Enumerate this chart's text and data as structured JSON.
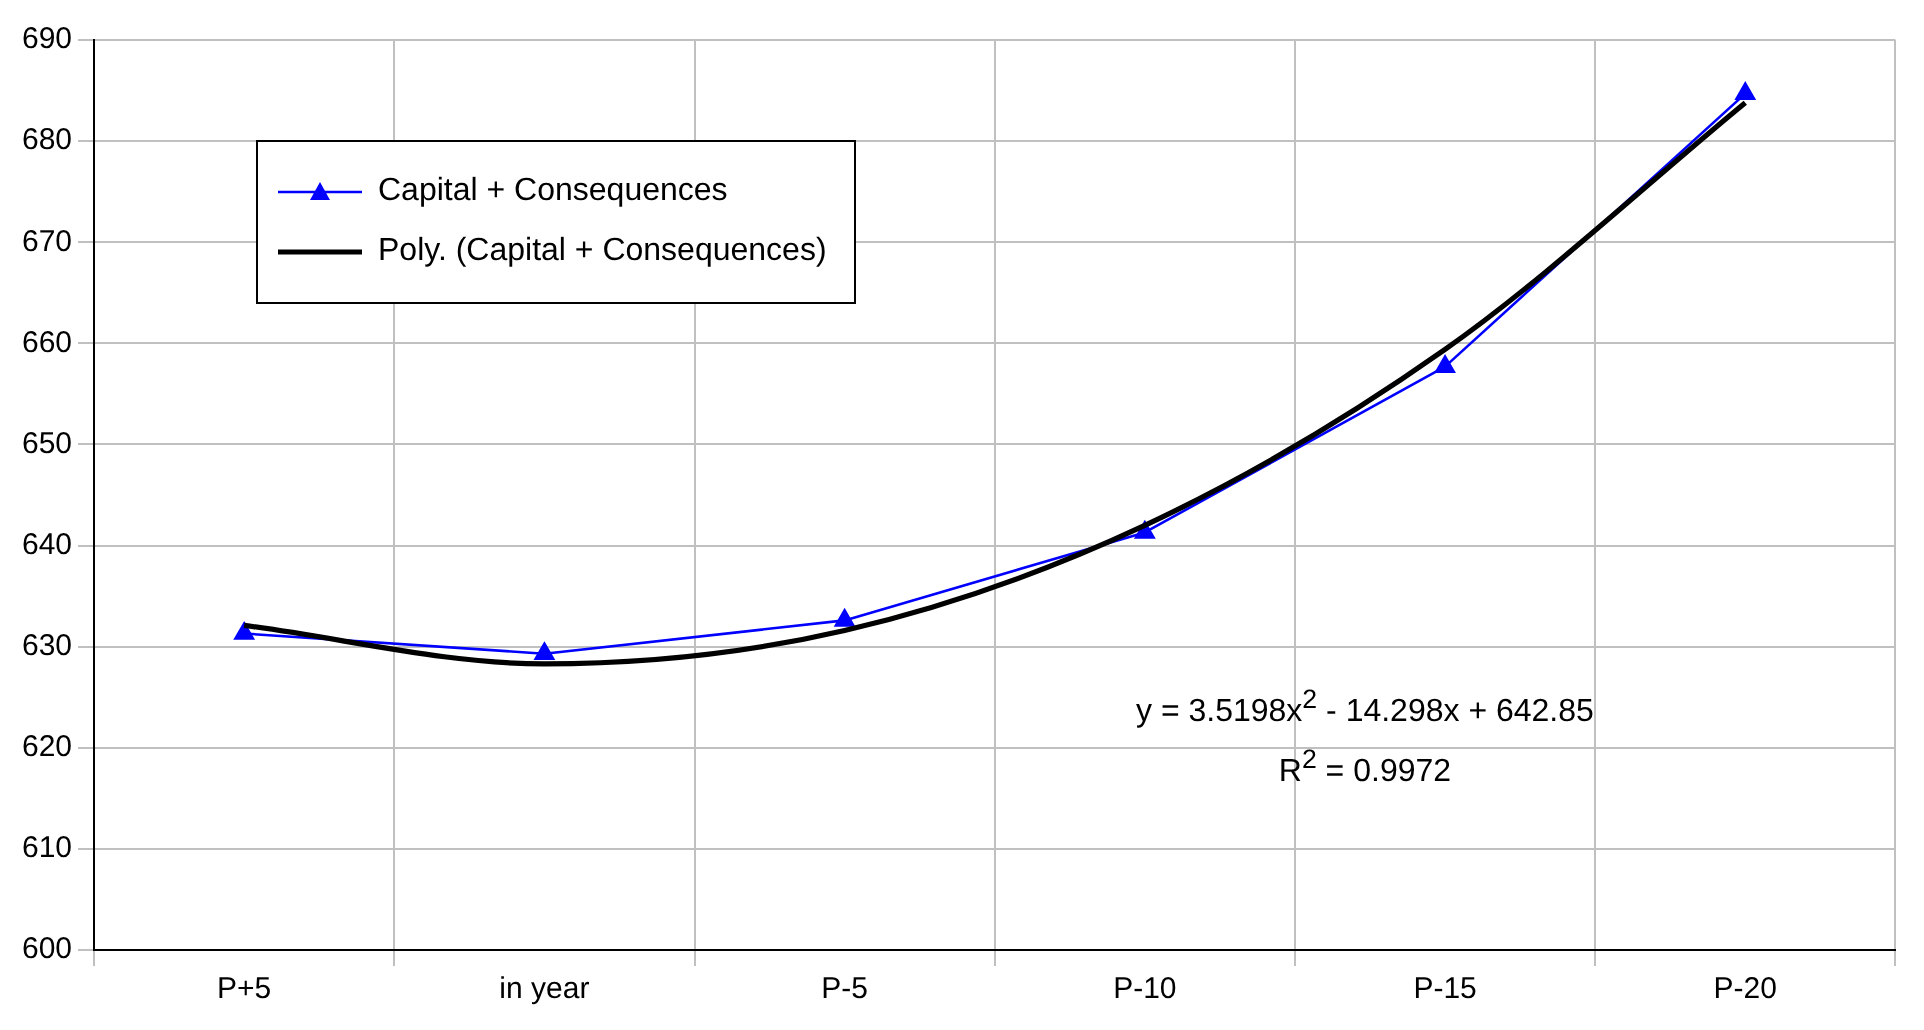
{
  "chart_data": {
    "type": "line",
    "categories": [
      "P+5",
      "in year",
      "P-5",
      "P-10",
      "P-15",
      "P-20"
    ],
    "series": [
      {
        "name": "Capital + Consequences",
        "color": "#0000ff",
        "values": [
          631.3,
          629.3,
          632.6,
          641.3,
          657.7,
          684.7
        ],
        "marker": "triangle"
      },
      {
        "name": "Poly. (Capital + Consequences)",
        "color": "#000000",
        "values": [
          632.1,
          628.3,
          631.6,
          642,
          659.4,
          683.8
        ],
        "marker": "none"
      }
    ],
    "ylim": [
      600,
      690
    ],
    "yticks": [
      600,
      610,
      620,
      630,
      640,
      650,
      660,
      670,
      680,
      690
    ],
    "grid": true,
    "legend": "top left",
    "annotations": [
      "y = 3.5198x$^{2}$ - 14.298x + 642.85",
      "R$^{2}$ = 0.9972"
    ]
  }
}
